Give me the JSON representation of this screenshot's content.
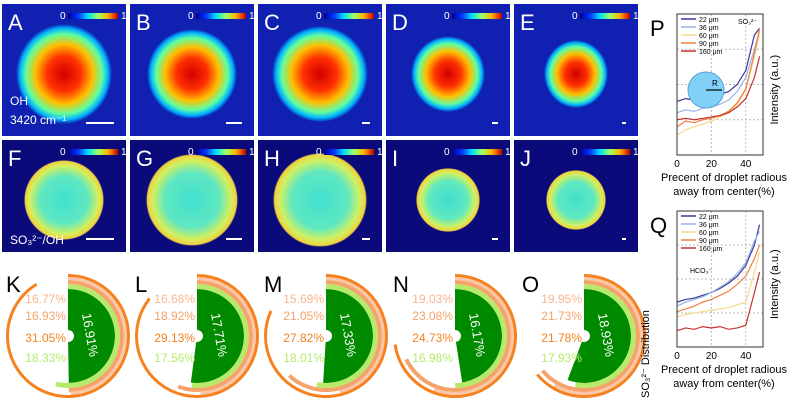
{
  "image_panels": [
    {
      "letter": "A",
      "row": 0,
      "shape": "ellipse"
    },
    {
      "letter": "B",
      "row": 0
    },
    {
      "letter": "C",
      "row": 0
    },
    {
      "letter": "D",
      "row": 0
    },
    {
      "letter": "E",
      "row": 0
    },
    {
      "letter": "F",
      "row": 1
    },
    {
      "letter": "G",
      "row": 1
    },
    {
      "letter": "H",
      "row": 1
    },
    {
      "letter": "I",
      "row": 1
    },
    {
      "letter": "J",
      "row": 1
    }
  ],
  "colorbar": {
    "min": "0",
    "max": "1"
  },
  "row_labels": {
    "oh": "OH",
    "wavenumber": "3420 cm⁻¹",
    "ratio": "SO₃²⁻/OH"
  },
  "colors": {
    "dark_green": "#008a00",
    "light_green": "#b5ea6a",
    "orange": "#f5821f",
    "salmon": "#f5a36a",
    "pale": "#fbc7a8",
    "field_top": "#1020b0",
    "field_bottom": "#0a0a7a"
  },
  "distribution_axis_label": "SO₃²⁻ Distribution",
  "chart_data": [
    {
      "type": "line",
      "panel": "P",
      "annotation": "SO₃²⁻",
      "xlabel": [
        "Precent of droplet radious",
        "away from center(%)"
      ],
      "ylabel": "Intensity (a.u.)",
      "xticks": [
        "0",
        "20",
        "40"
      ],
      "xlim": [
        0,
        50
      ],
      "ylim": [
        0,
        1
      ],
      "grid": true,
      "legend": "top-left",
      "inset_label": "R",
      "x": [
        0,
        5,
        10,
        15,
        20,
        25,
        30,
        35,
        40,
        45,
        48
      ],
      "series": [
        {
          "name": "22 μm",
          "color": "#3a3a9a",
          "values": [
            0.38,
            0.4,
            0.39,
            0.4,
            0.41,
            0.43,
            0.45,
            0.5,
            0.6,
            0.85,
            0.9
          ]
        },
        {
          "name": "36 μm",
          "color": "#9ab4e8",
          "values": [
            0.3,
            0.32,
            0.31,
            0.33,
            0.34,
            0.36,
            0.39,
            0.45,
            0.55,
            0.75,
            0.88
          ]
        },
        {
          "name": "60 μm",
          "color": "#f5d98a",
          "values": [
            0.14,
            0.18,
            0.2,
            0.22,
            0.24,
            0.27,
            0.3,
            0.36,
            0.46,
            0.7,
            0.86
          ]
        },
        {
          "name": "90 μm",
          "color": "#f08040",
          "values": [
            0.2,
            0.24,
            0.23,
            0.25,
            0.26,
            0.28,
            0.31,
            0.37,
            0.47,
            0.72,
            0.9
          ]
        },
        {
          "name": "160 μm",
          "color": "#c83030",
          "values": [
            0.25,
            0.26,
            0.25,
            0.26,
            0.27,
            0.28,
            0.3,
            0.34,
            0.4,
            0.55,
            0.7
          ]
        }
      ]
    },
    {
      "type": "line",
      "panel": "Q",
      "annotation": "HCO₃⁻",
      "xlabel": [
        "Precent of droplet radious",
        "away from center(%)"
      ],
      "ylabel": "Intensity (a.u.)",
      "xticks": [
        "0",
        "20",
        "40"
      ],
      "xlim": [
        0,
        50
      ],
      "ylim": [
        0,
        1
      ],
      "grid": true,
      "legend": "top-left",
      "x": [
        0,
        5,
        10,
        15,
        20,
        25,
        30,
        35,
        40,
        45,
        48
      ],
      "series": [
        {
          "name": "22 μm",
          "color": "#3a3a9a",
          "values": [
            0.33,
            0.35,
            0.36,
            0.38,
            0.4,
            0.43,
            0.47,
            0.52,
            0.6,
            0.75,
            0.9
          ]
        },
        {
          "name": "36 μm",
          "color": "#9ab4e8",
          "values": [
            0.3,
            0.33,
            0.35,
            0.37,
            0.4,
            0.44,
            0.48,
            0.54,
            0.62,
            0.78,
            0.85
          ]
        },
        {
          "name": "60 μm",
          "color": "#f5d98a",
          "values": [
            0.22,
            0.24,
            0.25,
            0.26,
            0.27,
            0.28,
            0.29,
            0.31,
            0.33,
            0.55,
            0.7
          ]
        },
        {
          "name": "90 μm",
          "color": "#f08040",
          "values": [
            0.26,
            0.28,
            0.3,
            0.33,
            0.35,
            0.38,
            0.41,
            0.46,
            0.52,
            0.65,
            0.75
          ]
        },
        {
          "name": "160 μm",
          "color": "#c83030",
          "values": [
            0.12,
            0.14,
            0.13,
            0.15,
            0.14,
            0.15,
            0.13,
            0.14,
            0.16,
            0.4,
            0.55
          ]
        }
      ]
    },
    {
      "type": "radial_bar",
      "full_circle_percent": 34,
      "panels": [
        {
          "letter": "K",
          "inner": "16.91%",
          "inner_value": 16.91,
          "rings": [
            {
              "label": "18.33%",
              "value": 18.33,
              "color": "#b5ea6a"
            },
            {
              "label": "16.93%",
              "value": 16.93,
              "color": "#f5a36a"
            },
            {
              "label": "16.77%",
              "value": 16.77,
              "color": "#fbc7a8"
            },
            {
              "label": "31.05%",
              "value": 31.05,
              "color": "#f5821f"
            }
          ]
        },
        {
          "letter": "L",
          "inner": "17.71%",
          "inner_value": 17.71,
          "rings": [
            {
              "label": "17.56%",
              "value": 17.56,
              "color": "#b5ea6a"
            },
            {
              "label": "18.92%",
              "value": 18.92,
              "color": "#f5a36a"
            },
            {
              "label": "16.68%",
              "value": 16.68,
              "color": "#fbc7a8"
            },
            {
              "label": "29.13%",
              "value": 29.13,
              "color": "#f5821f"
            }
          ]
        },
        {
          "letter": "M",
          "inner": "17.33%",
          "inner_value": 17.33,
          "rings": [
            {
              "label": "18.01%",
              "value": 18.01,
              "color": "#b5ea6a"
            },
            {
              "label": "21.05%",
              "value": 21.05,
              "color": "#f5a36a"
            },
            {
              "label": "15.69%",
              "value": 15.69,
              "color": "#fbc7a8"
            },
            {
              "label": "27.82%",
              "value": 27.82,
              "color": "#f5821f"
            }
          ]
        },
        {
          "letter": "N",
          "inner": "16.17%",
          "inner_value": 16.17,
          "rings": [
            {
              "label": "16.98%",
              "value": 16.98,
              "color": "#b5ea6a"
            },
            {
              "label": "23.08%",
              "value": 23.08,
              "color": "#f5a36a"
            },
            {
              "label": "19.03%",
              "value": 19.03,
              "color": "#fbc7a8"
            },
            {
              "label": "24.73%",
              "value": 24.73,
              "color": "#f5821f"
            }
          ]
        },
        {
          "letter": "O",
          "inner": "18.93%",
          "inner_value": 18.93,
          "rings": [
            {
              "label": "17.93%",
              "value": 17.93,
              "color": "#b5ea6a"
            },
            {
              "label": "21.73%",
              "value": 21.73,
              "color": "#f5a36a"
            },
            {
              "label": "19.95%",
              "value": 19.95,
              "color": "#fbc7a8"
            },
            {
              "label": "21.78%",
              "value": 21.78,
              "color": "#f5821f"
            }
          ]
        }
      ]
    }
  ]
}
